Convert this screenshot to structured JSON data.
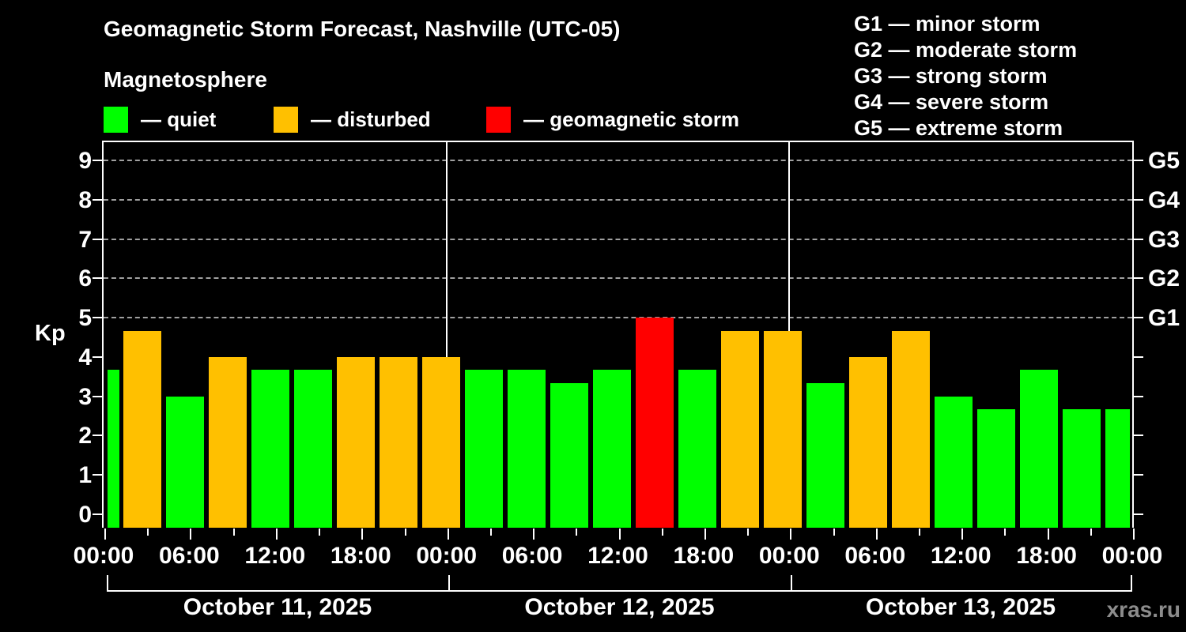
{
  "title": "Geomagnetic Storm Forecast, Nashville (UTC-05)",
  "subtitle": "Magnetosphere",
  "kp_axis_label": "Kp",
  "watermark": "xras.ru",
  "colors": {
    "quiet": "#00FF00",
    "disturbed": "#FFC000",
    "storm": "#FF0000",
    "grid": "#A0A0A0",
    "axis": "#FFFFFF",
    "text": "#FFFFFF",
    "watermark": "#8C8C8C"
  },
  "legend": {
    "items": [
      {
        "key": "quiet",
        "label": "— quiet",
        "color": "#00FF00"
      },
      {
        "key": "disturbed",
        "label": "— disturbed",
        "color": "#FFC000"
      },
      {
        "key": "storm",
        "label": "— geomagnetic storm",
        "color": "#FF0000"
      }
    ]
  },
  "g_scale_legend": [
    "G1 — minor storm",
    "G2 — moderate storm",
    "G3 — strong storm",
    "G4 — severe storm",
    "G5 — extreme storm"
  ],
  "chart_data": {
    "type": "bar",
    "title": "Geomagnetic Storm Forecast, Nashville (UTC-05)",
    "xlabel": "",
    "ylabel": "Kp",
    "ylim": [
      0,
      9
    ],
    "y_ticks": [
      0,
      1,
      2,
      3,
      4,
      5,
      6,
      7,
      8,
      9
    ],
    "gridlines_kp": [
      5,
      6,
      7,
      8,
      9
    ],
    "grid": "dashed horizontal at storm levels only",
    "legend_position": "top-left",
    "right_axis": [
      {
        "kp": 5,
        "label": "G1"
      },
      {
        "kp": 6,
        "label": "G2"
      },
      {
        "kp": 7,
        "label": "G3"
      },
      {
        "kp": 8,
        "label": "G4"
      },
      {
        "kp": 9,
        "label": "G5"
      }
    ],
    "x_tick_labels": [
      "00:00",
      "06:00",
      "12:00",
      "18:00",
      "00:00",
      "06:00",
      "12:00",
      "18:00",
      "00:00",
      "06:00",
      "12:00",
      "18:00",
      "00:00"
    ],
    "x_tick_hours": [
      0,
      6,
      12,
      18,
      24,
      30,
      36,
      42,
      48,
      54,
      60,
      66,
      72
    ],
    "bar_interval_hours": 3,
    "thresholds": {
      "disturbed": 4,
      "storm": 5
    },
    "days": [
      {
        "date": "October 11, 2025"
      },
      {
        "date": "October 12, 2025"
      },
      {
        "date": "October 13, 2025"
      }
    ],
    "bars": [
      {
        "kp": 3.67,
        "status": "quiet",
        "partial": "start"
      },
      {
        "kp": 4.67,
        "status": "disturbed"
      },
      {
        "kp": 3.0,
        "status": "quiet"
      },
      {
        "kp": 4.0,
        "status": "disturbed"
      },
      {
        "kp": 3.67,
        "status": "quiet"
      },
      {
        "kp": 3.67,
        "status": "quiet"
      },
      {
        "kp": 4.0,
        "status": "disturbed"
      },
      {
        "kp": 4.0,
        "status": "disturbed"
      },
      {
        "kp": 4.0,
        "status": "disturbed"
      },
      {
        "kp": 3.67,
        "status": "quiet"
      },
      {
        "kp": 3.67,
        "status": "quiet"
      },
      {
        "kp": 3.33,
        "status": "quiet"
      },
      {
        "kp": 3.67,
        "status": "quiet"
      },
      {
        "kp": 5.0,
        "status": "storm"
      },
      {
        "kp": 3.67,
        "status": "quiet"
      },
      {
        "kp": 4.67,
        "status": "disturbed"
      },
      {
        "kp": 4.67,
        "status": "disturbed"
      },
      {
        "kp": 3.33,
        "status": "quiet"
      },
      {
        "kp": 4.0,
        "status": "disturbed"
      },
      {
        "kp": 4.67,
        "status": "disturbed"
      },
      {
        "kp": 3.0,
        "status": "quiet"
      },
      {
        "kp": 2.67,
        "status": "quiet"
      },
      {
        "kp": 3.67,
        "status": "quiet"
      },
      {
        "kp": 2.67,
        "status": "quiet"
      },
      {
        "kp": 2.67,
        "status": "quiet",
        "partial": "end"
      }
    ]
  }
}
